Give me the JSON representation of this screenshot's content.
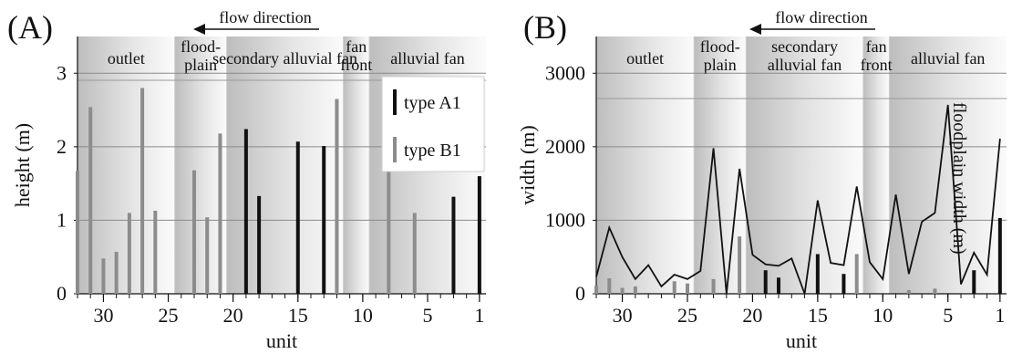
{
  "chart_data": [
    {
      "panel_label": "(A)",
      "type": "bar",
      "flow_label": "flow direction",
      "xlabel": "unit",
      "ylabel": "height (m)",
      "xlim": [
        32,
        0.5
      ],
      "ylim": [
        0,
        3.5
      ],
      "xticks": [
        30,
        25,
        20,
        15,
        10,
        5,
        1
      ],
      "yticks": [
        0,
        1,
        2,
        3
      ],
      "grid": "horizontal",
      "legend_position": "top-right",
      "zones": [
        {
          "label": [
            "outlet"
          ],
          "from": 32,
          "to": 24.5
        },
        {
          "label": [
            "flood-",
            "plain"
          ],
          "from": 24.5,
          "to": 20.5
        },
        {
          "label": [
            "secondary alluvial fan"
          ],
          "from": 20.5,
          "to": 11.5
        },
        {
          "label": [
            "fan",
            "front"
          ],
          "from": 11.5,
          "to": 9.5
        },
        {
          "label": [
            "alluvial fan"
          ],
          "from": 9.5,
          "to": 0.5
        }
      ],
      "series": [
        {
          "name": "type A1",
          "color": "#111111",
          "points": [
            [
              19,
              2.24
            ],
            [
              18,
              1.33
            ],
            [
              15,
              2.07
            ],
            [
              13,
              2.01
            ],
            [
              3,
              1.32
            ],
            [
              1,
              1.6
            ]
          ]
        },
        {
          "name": "type B1",
          "color": "#8c8c8c",
          "points": [
            [
              32,
              1.67
            ],
            [
              31,
              2.54
            ],
            [
              30,
              0.48
            ],
            [
              29,
              0.57
            ],
            [
              28,
              1.1
            ],
            [
              27,
              2.8
            ],
            [
              26,
              1.13
            ],
            [
              23,
              1.68
            ],
            [
              22,
              1.04
            ],
            [
              21,
              2.18
            ],
            [
              12,
              2.65
            ],
            [
              8,
              1.93
            ],
            [
              6,
              1.1
            ]
          ]
        }
      ]
    },
    {
      "panel_label": "(B)",
      "type": "line",
      "flow_label": "flow direction",
      "xlabel": "unit",
      "ylabel": "width (m)",
      "xlim": [
        32,
        0.5
      ],
      "ylim": [
        0,
        3500
      ],
      "xticks": [
        30,
        25,
        20,
        15,
        10,
        5,
        1
      ],
      "yticks": [
        0,
        1000,
        2000,
        3000
      ],
      "grid": "horizontal",
      "zones": [
        {
          "label": [
            "outlet"
          ],
          "from": 32,
          "to": 24.5
        },
        {
          "label": [
            "flood-",
            "plain"
          ],
          "from": 24.5,
          "to": 20.5
        },
        {
          "label": [
            "secondary",
            "alluvial fan"
          ],
          "from": 20.5,
          "to": 11.5
        },
        {
          "label": [
            "fan",
            "front"
          ],
          "from": 11.5,
          "to": 9.5
        },
        {
          "label": [
            "alluvial fan"
          ],
          "from": 9.5,
          "to": 0.5
        }
      ],
      "annotation": "floodplain width (m)",
      "series": [
        {
          "name": "floodplain width (m)",
          "kind": "line",
          "color": "#111111",
          "points": [
            [
              32,
              230
            ],
            [
              31,
              900
            ],
            [
              30,
              500
            ],
            [
              29,
              200
            ],
            [
              28,
              390
            ],
            [
              27,
              100
            ],
            [
              26,
              260
            ],
            [
              25,
              200
            ],
            [
              24,
              310
            ],
            [
              23,
              1980
            ],
            [
              22,
              0
            ],
            [
              21,
              1700
            ],
            [
              20,
              530
            ],
            [
              19,
              400
            ],
            [
              18,
              380
            ],
            [
              17,
              480
            ],
            [
              16,
              0
            ],
            [
              15,
              1270
            ],
            [
              14,
              420
            ],
            [
              13,
              390
            ],
            [
              12,
              1460
            ],
            [
              11,
              430
            ],
            [
              10,
              200
            ],
            [
              9,
              1350
            ],
            [
              8,
              270
            ],
            [
              7,
              980
            ],
            [
              6,
              1100
            ],
            [
              5,
              2570
            ],
            [
              4,
              130
            ],
            [
              3,
              560
            ],
            [
              2,
              260
            ],
            [
              1,
              2110
            ]
          ]
        },
        {
          "name": "type A1",
          "kind": "bar",
          "color": "#111111",
          "points": [
            [
              19,
              320
            ],
            [
              18,
              220
            ],
            [
              15,
              540
            ],
            [
              13,
              270
            ],
            [
              3,
              320
            ],
            [
              1,
              1030
            ]
          ]
        },
        {
          "name": "type B1",
          "kind": "bar",
          "color": "#8c8c8c",
          "points": [
            [
              32,
              110
            ],
            [
              31,
              210
            ],
            [
              30,
              80
            ],
            [
              29,
              100
            ],
            [
              26,
              170
            ],
            [
              25,
              140
            ],
            [
              23,
              200
            ],
            [
              21,
              780
            ],
            [
              12,
              540
            ],
            [
              8,
              50
            ],
            [
              6,
              70
            ]
          ]
        }
      ]
    }
  ]
}
